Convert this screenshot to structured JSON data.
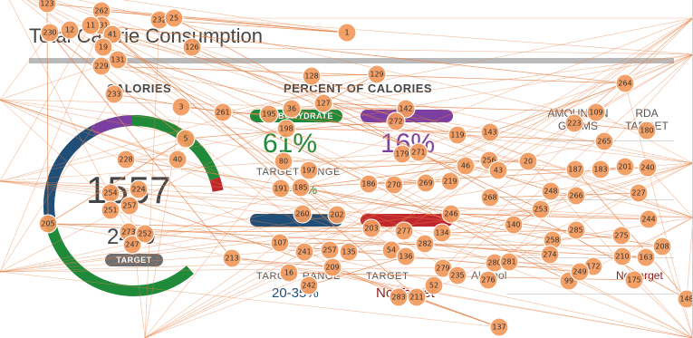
{
  "page": {
    "title": "Total Calorie Consumption",
    "calories_header": "CALORIES",
    "percent_header": "PERCENT OF CALORIES",
    "calories_value": "1557",
    "calories_target_value": "2400",
    "calories_target_pill": "TARGET",
    "carbohydrate_pill": "CARBOHYDRATE",
    "carbohydrate_percent": "61%",
    "carbohydrate_target_range_label": "TARGET RANGE",
    "carbohydrate_target_range": "45-65%",
    "fat_percent": "16%",
    "fat_target_range_label": "TARGET RANGE",
    "fat_target_range": "20-35%",
    "alcohol_target_label": "TARGET",
    "alcohol_target": "No Target",
    "alcohol_label": "Alcohol",
    "grams_header": "AMOUNT IN GRAMS",
    "rda_header": "RDA TARGET",
    "second_no_target": "No Target"
  },
  "colors": {
    "green": "#1e8a3a",
    "navy": "#1f4e79",
    "purple": "#7a3fa0",
    "red": "#c0272d",
    "gray": "#888888",
    "node_fill": "#f29a5e",
    "node_stroke": "#ffffff",
    "edge": "#e8844a"
  },
  "overlay_nodes": [
    "123",
    "262",
    "230",
    "12",
    "231",
    "41",
    "11",
    "19",
    "232",
    "25",
    "1",
    "126",
    "131",
    "229",
    "233",
    "128",
    "129",
    "264",
    "3",
    "261",
    "195",
    "36",
    "142",
    "109",
    "127",
    "272",
    "5",
    "198",
    "143",
    "223",
    "180",
    "228",
    "40",
    "119",
    "265",
    "179",
    "271",
    "20",
    "80",
    "197",
    "256",
    "43",
    "187",
    "183",
    "201",
    "240",
    "191",
    "185",
    "46",
    "219",
    "186",
    "270",
    "269",
    "248",
    "266",
    "254",
    "224",
    "251",
    "257",
    "268",
    "227",
    "260",
    "202",
    "140",
    "253",
    "246",
    "244",
    "205",
    "203",
    "277",
    "273",
    "247",
    "252",
    "134",
    "285",
    "258",
    "275",
    "208",
    "107",
    "241",
    "257",
    "135",
    "54",
    "282",
    "274",
    "210",
    "163",
    "213",
    "209",
    "279",
    "235",
    "276",
    "280",
    "281",
    "172",
    "99",
    "249",
    "175",
    "16",
    "242",
    "136",
    "52",
    "283",
    "211",
    "137",
    "148",
    "236",
    "111"
  ]
}
